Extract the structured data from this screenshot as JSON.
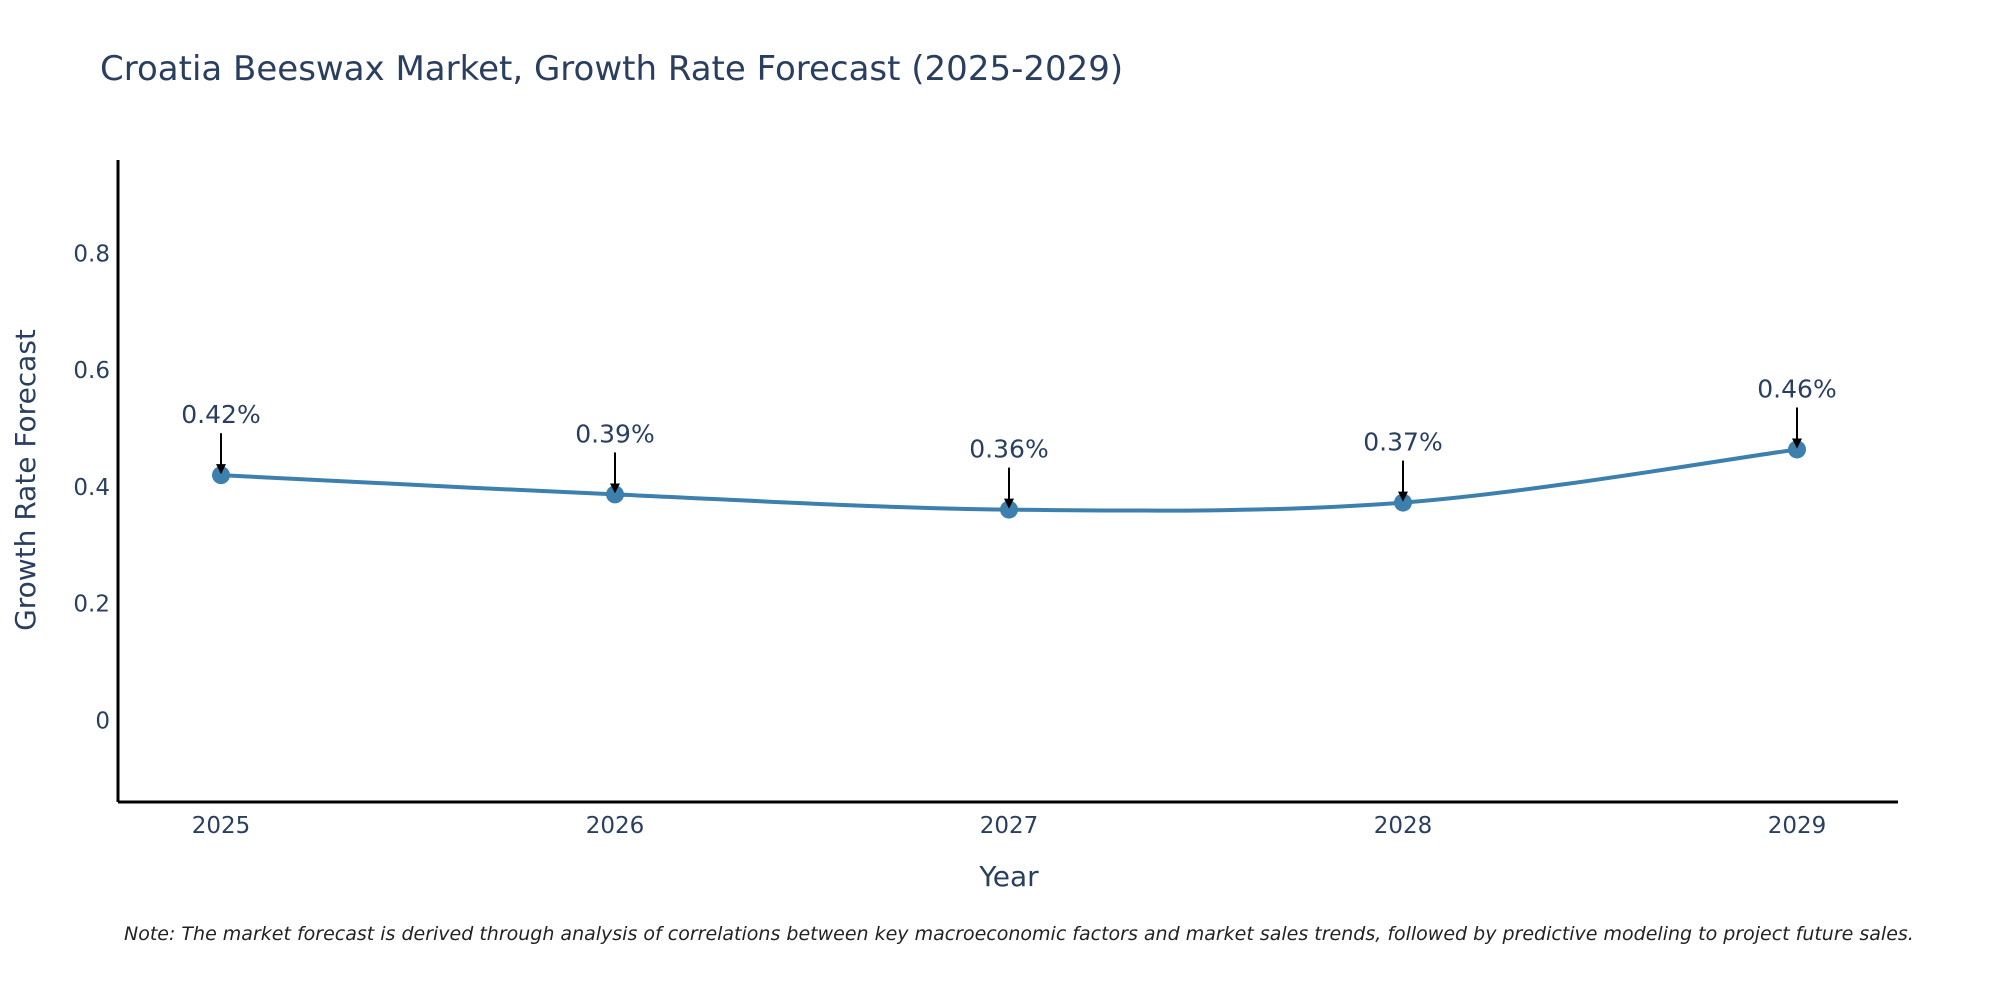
{
  "chart_data": {
    "type": "line",
    "title": "Croatia Beeswax Market, Growth Rate Forecast (2025-2029)",
    "xlabel": "Year",
    "ylabel": "Growth Rate Forecast",
    "categories": [
      "2025",
      "2026",
      "2027",
      "2028",
      "2029"
    ],
    "values": [
      0.42,
      0.387,
      0.361,
      0.373,
      0.464
    ],
    "data_labels": [
      "0.42%",
      "0.39%",
      "0.36%",
      "0.37%",
      "0.46%"
    ],
    "ylim": [
      -0.14,
      0.96
    ],
    "yticks": [
      0,
      0.2,
      0.4,
      0.6,
      0.8
    ],
    "ytick_labels": [
      "0",
      "0.2",
      "0.4",
      "0.6",
      "0.8"
    ],
    "grid": false,
    "line_shape": "spline",
    "series_color": "#3d7fad",
    "annotation_arrow_color": "#000000",
    "note": "Note: The market forecast is derived through analysis of correlations between key macroeconomic factors and market sales trends, followed by predictive modeling to project future sales."
  }
}
